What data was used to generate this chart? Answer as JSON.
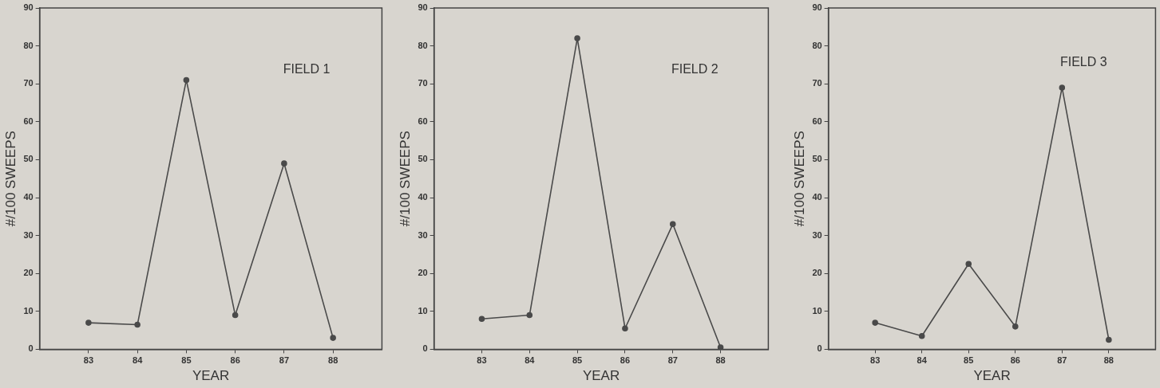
{
  "chart_data": [
    {
      "type": "line",
      "title": "FIELD 1",
      "xlabel": "YEAR",
      "ylabel": "#/100 SWEEPS",
      "x": [
        83,
        84,
        85,
        86,
        87,
        88
      ],
      "series": [
        {
          "color": "#4a4a4a",
          "values": [
            7,
            6.5,
            71,
            9,
            49,
            3
          ]
        }
      ],
      "xlim": [
        82,
        89
      ],
      "xticks": [
        83,
        84,
        85,
        86,
        87,
        88
      ],
      "ylim": [
        0,
        90
      ],
      "yticks": [
        0,
        10,
        20,
        30,
        40,
        50,
        60,
        70,
        80,
        90
      ],
      "grid": false,
      "legend": false,
      "marker": "circle",
      "line_style": "solid"
    },
    {
      "type": "line",
      "title": "FIELD 2",
      "xlabel": "YEAR",
      "ylabel": "#/100 SWEEPS",
      "x": [
        83,
        84,
        85,
        86,
        87,
        88
      ],
      "series": [
        {
          "color": "#4a4a4a",
          "values": [
            8,
            9,
            82,
            5.5,
            33,
            0.5
          ]
        }
      ],
      "xlim": [
        82,
        89
      ],
      "xticks": [
        83,
        84,
        85,
        86,
        87,
        88
      ],
      "ylim": [
        0,
        90
      ],
      "yticks": [
        0,
        10,
        20,
        30,
        40,
        50,
        60,
        70,
        80,
        90
      ],
      "grid": false,
      "legend": false,
      "marker": "circle",
      "line_style": "solid"
    },
    {
      "type": "line",
      "title": "FIELD 3",
      "xlabel": "YEAR",
      "ylabel": "#/100 SWEEPS",
      "x": [
        83,
        84,
        85,
        86,
        87,
        88
      ],
      "series": [
        {
          "color": "#4a4a4a",
          "values": [
            7,
            3.5,
            22.5,
            6,
            69,
            2.5
          ]
        }
      ],
      "xlim": [
        82,
        89
      ],
      "xticks": [
        83,
        84,
        85,
        86,
        87,
        88
      ],
      "ylim": [
        0,
        90
      ],
      "yticks": [
        0,
        10,
        20,
        30,
        40,
        50,
        60,
        70,
        80,
        90
      ],
      "grid": false,
      "legend": false,
      "marker": "circle",
      "line_style": "solid"
    }
  ]
}
